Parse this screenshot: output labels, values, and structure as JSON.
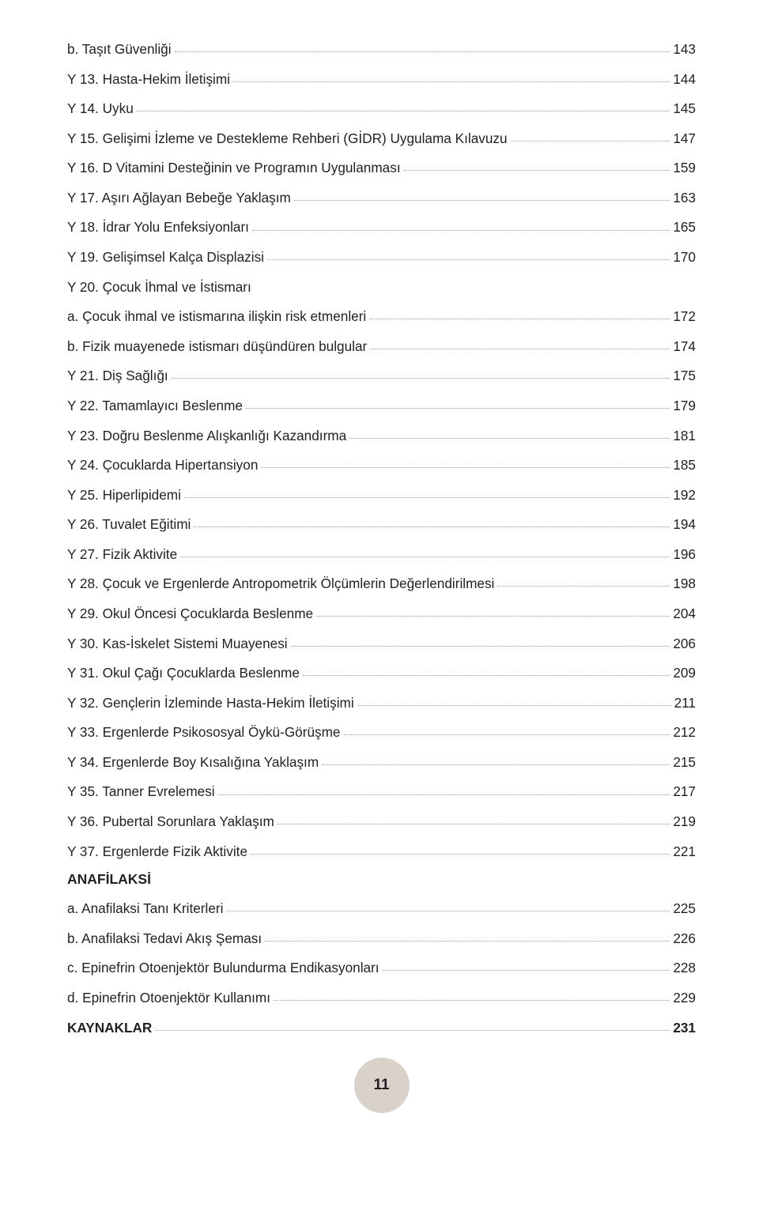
{
  "toc": [
    {
      "label": "b. Taşıt Güvenliği",
      "page": "143",
      "bold": false
    },
    {
      "label": "Y 13. Hasta-Hekim İletişimi",
      "page": "144",
      "bold": false
    },
    {
      "label": "Y 14. Uyku",
      "page": "145",
      "bold": false
    },
    {
      "label": "Y 15. Gelişimi İzleme ve Destekleme Rehberi (GİDR) Uygulama Kılavuzu",
      "page": "147",
      "bold": false
    },
    {
      "label": "Y 16. D Vitamini Desteğinin ve Programın Uygulanması",
      "page": "159",
      "bold": false
    },
    {
      "label": "Y 17. Aşırı Ağlayan Bebeğe Yaklaşım",
      "page": "163",
      "bold": false
    },
    {
      "label": "Y 18. İdrar Yolu Enfeksiyonları",
      "page": "165",
      "bold": false
    },
    {
      "label": "Y 19. Gelişimsel Kalça Displazisi",
      "page": "170",
      "bold": false
    },
    {
      "label": "Y 20. Çocuk İhmal ve İstismarı",
      "page": "",
      "bold": false,
      "nopage": true
    },
    {
      "label": "a. Çocuk ihmal ve istismarına ilişkin risk etmenleri",
      "page": "172",
      "bold": false
    },
    {
      "label": "b. Fizik muayenede istismarı düşündüren bulgular",
      "page": "174",
      "bold": false
    },
    {
      "label": "Y 21. Diş Sağlığı",
      "page": "175",
      "bold": false
    },
    {
      "label": "Y 22. Tamamlayıcı Beslenme",
      "page": "179",
      "bold": false
    },
    {
      "label": "Y 23. Doğru Beslenme Alışkanlığı Kazandırma",
      "page": "181",
      "bold": false
    },
    {
      "label": "Y 24. Çocuklarda Hipertansiyon",
      "page": "185",
      "bold": false
    },
    {
      "label": "Y 25. Hiperlipidemi",
      "page": "192",
      "bold": false
    },
    {
      "label": "Y 26. Tuvalet Eğitimi",
      "page": "194",
      "bold": false
    },
    {
      "label": "Y 27. Fizik Aktivite",
      "page": "196",
      "bold": false
    },
    {
      "label": "Y 28. Çocuk ve Ergenlerde Antropometrik Ölçümlerin Değerlendirilmesi",
      "page": "198",
      "bold": false
    },
    {
      "label": "Y 29. Okul Öncesi Çocuklarda Beslenme",
      "page": "204",
      "bold": false
    },
    {
      "label": "Y 30. Kas-İskelet Sistemi Muayenesi",
      "page": "206",
      "bold": false
    },
    {
      "label": "Y 31. Okul Çağı Çocuklarda Beslenme",
      "page": "209",
      "bold": false
    },
    {
      "label": "Y 32. Gençlerin İzleminde Hasta-Hekim İletişimi",
      "page": "211",
      "bold": false
    },
    {
      "label": "Y 33. Ergenlerde Psikososyal Öykü-Görüşme",
      "page": "212",
      "bold": false
    },
    {
      "label": "Y 34. Ergenlerde Boy Kısalığına Yaklaşım",
      "page": "215",
      "bold": false
    },
    {
      "label": "Y 35. Tanner Evrelemesi",
      "page": "217",
      "bold": false
    },
    {
      "label": "Y 36. Pubertal Sorunlara Yaklaşım",
      "page": "219",
      "bold": false
    },
    {
      "label": "Y 37. Ergenlerde Fizik Aktivite",
      "page": "221",
      "bold": false
    },
    {
      "label": "ANAFİLAKSİ",
      "page": "",
      "bold": true,
      "heading": true
    },
    {
      "label": "a. Anafilaksi Tanı Kriterleri",
      "page": "225",
      "bold": false
    },
    {
      "label": "b. Anafilaksi Tedavi Akış Şeması",
      "page": "226",
      "bold": false
    },
    {
      "label": "c. Epinefrin Otoenjektör Bulundurma Endikasyonları",
      "page": "228",
      "bold": false
    },
    {
      "label": "d. Epinefrin Otoenjektör Kullanımı",
      "page": "229",
      "bold": false
    },
    {
      "label": "KAYNAKLAR",
      "page": "231",
      "bold": true
    }
  ],
  "footer": {
    "page_number": "11"
  },
  "style": {
    "text_color": "#231f20",
    "dot_color": "#9d9d9d",
    "badge_bg": "#d9d2ca",
    "font_size": 17.2,
    "heading_font_size": 17.5,
    "badge_font_size": 19
  }
}
